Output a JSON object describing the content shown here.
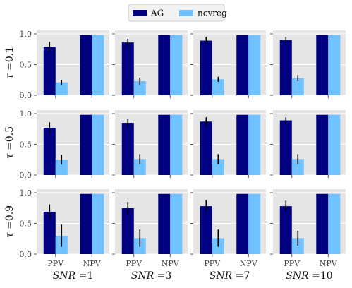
{
  "legend": {
    "items": [
      {
        "name": "AG",
        "color": "#000080"
      },
      {
        "name": "ncvreg",
        "color": "#6fc1ff"
      }
    ]
  },
  "colors": {
    "panel_bg": "#e5e5e5",
    "grid": "#ffffff",
    "error_bar": "#000000"
  },
  "chart_data": {
    "type": "bar",
    "categories": [
      "PPV",
      "NPV"
    ],
    "ylim": [
      0,
      1.0
    ],
    "yticks": [
      "0.0",
      "0.5",
      "1.0"
    ],
    "grid": true,
    "legend_position": "top-center",
    "row_labels": [
      {
        "sym": "τ",
        "eq": "=",
        "val": "0.1"
      },
      {
        "sym": "τ",
        "eq": "=",
        "val": "0.5"
      },
      {
        "sym": "τ",
        "eq": "=",
        "val": "0.9"
      }
    ],
    "col_labels": [
      {
        "sym": "SNR",
        "eq": "=",
        "val": "1"
      },
      {
        "sym": "SNR",
        "eq": "=",
        "val": "3"
      },
      {
        "sym": "SNR",
        "eq": "=",
        "val": "7"
      },
      {
        "sym": "SNR",
        "eq": "=",
        "val": "10"
      }
    ],
    "panels": [
      [
        {
          "AG": [
            0.79,
            0.98
          ],
          "ncvreg": [
            0.21,
            0.98
          ],
          "AG_err": [
            0.08,
            0.0
          ],
          "ncvreg_err": [
            0.04,
            0.0
          ]
        },
        {
          "AG": [
            0.86,
            0.98
          ],
          "ncvreg": [
            0.23,
            0.98
          ],
          "AG_err": [
            0.06,
            0.0
          ],
          "ncvreg_err": [
            0.06,
            0.0
          ]
        },
        {
          "AG": [
            0.89,
            0.98
          ],
          "ncvreg": [
            0.26,
            0.98
          ],
          "AG_err": [
            0.06,
            0.0
          ],
          "ncvreg_err": [
            0.04,
            0.0
          ]
        },
        {
          "AG": [
            0.9,
            0.98
          ],
          "ncvreg": [
            0.28,
            0.98
          ],
          "AG_err": [
            0.05,
            0.0
          ],
          "ncvreg_err": [
            0.05,
            0.0
          ]
        }
      ],
      [
        {
          "AG": [
            0.77,
            0.98
          ],
          "ncvreg": [
            0.25,
            0.98
          ],
          "AG_err": [
            0.09,
            0.0
          ],
          "ncvreg_err": [
            0.08,
            0.0
          ]
        },
        {
          "AG": [
            0.85,
            0.98
          ],
          "ncvreg": [
            0.26,
            0.98
          ],
          "AG_err": [
            0.06,
            0.0
          ],
          "ncvreg_err": [
            0.08,
            0.0
          ]
        },
        {
          "AG": [
            0.87,
            0.98
          ],
          "ncvreg": [
            0.26,
            0.98
          ],
          "AG_err": [
            0.07,
            0.0
          ],
          "ncvreg_err": [
            0.08,
            0.0
          ]
        },
        {
          "AG": [
            0.89,
            0.98
          ],
          "ncvreg": [
            0.26,
            0.98
          ],
          "AG_err": [
            0.05,
            0.0
          ],
          "ncvreg_err": [
            0.08,
            0.0
          ]
        }
      ],
      [
        {
          "AG": [
            0.69,
            0.98
          ],
          "ncvreg": [
            0.3,
            0.98
          ],
          "AG_err": [
            0.12,
            0.0
          ],
          "ncvreg_err": [
            0.18,
            0.0
          ]
        },
        {
          "AG": [
            0.75,
            0.98
          ],
          "ncvreg": [
            0.26,
            0.98
          ],
          "AG_err": [
            0.1,
            0.0
          ],
          "ncvreg_err": [
            0.14,
            0.0
          ]
        },
        {
          "AG": [
            0.78,
            0.98
          ],
          "ncvreg": [
            0.26,
            0.98
          ],
          "AG_err": [
            0.1,
            0.0
          ],
          "ncvreg_err": [
            0.14,
            0.0
          ]
        },
        {
          "AG": [
            0.78,
            0.98
          ],
          "ncvreg": [
            0.26,
            0.98
          ],
          "AG_err": [
            0.09,
            0.0
          ],
          "ncvreg_err": [
            0.12,
            0.0
          ]
        }
      ]
    ]
  }
}
